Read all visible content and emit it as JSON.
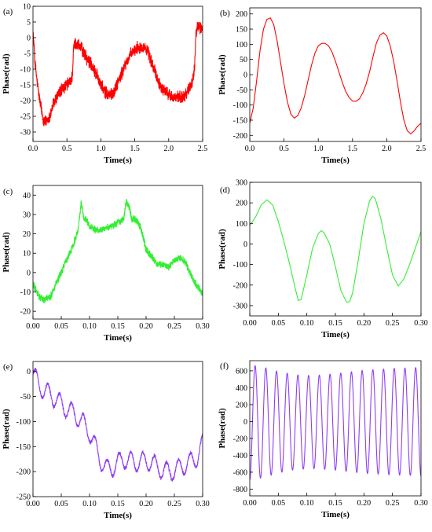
{
  "chart_data": [
    {
      "type": "line",
      "label": "(a)",
      "xlabel": "Time(s)",
      "ylabel": "Phase(rad)",
      "xlim": [
        0,
        2.5
      ],
      "ylim": [
        -33,
        10
      ],
      "xticks": [
        0.0,
        0.5,
        1.0,
        1.5,
        2.0,
        2.5
      ],
      "xtick_labels": [
        "0.0",
        "0.5",
        "1.0",
        "1.5",
        "2.0",
        "2.5"
      ],
      "yticks": [
        -30,
        -25,
        -20,
        -15,
        -10,
        -5,
        0,
        5,
        10
      ],
      "ytick_labels": [
        "-30",
        "-25",
        "-20",
        "-15",
        "-10",
        "-5",
        "0",
        "5",
        "10"
      ],
      "color": "#ff0000",
      "noise": 1.6,
      "x": [
        0.0,
        0.03,
        0.06,
        0.1,
        0.15,
        0.2,
        0.25,
        0.3,
        0.35,
        0.4,
        0.45,
        0.5,
        0.55,
        0.58,
        0.6,
        0.62,
        0.65,
        0.7,
        0.75,
        0.8,
        0.85,
        0.9,
        0.95,
        1.0,
        1.05,
        1.1,
        1.15,
        1.2,
        1.25,
        1.3,
        1.35,
        1.4,
        1.45,
        1.5,
        1.55,
        1.6,
        1.65,
        1.7,
        1.75,
        1.8,
        1.85,
        1.9,
        1.95,
        2.0,
        2.05,
        2.1,
        2.15,
        2.2,
        2.25,
        2.3,
        2.35,
        2.38,
        2.4,
        2.42,
        2.45,
        2.5
      ],
      "y": [
        2,
        -8,
        -14,
        -20,
        -26,
        -27,
        -25,
        -21,
        -19,
        -17,
        -16,
        -15,
        -14,
        -12,
        -3,
        -2,
        -2,
        -3,
        -5,
        -7,
        -8,
        -10,
        -12,
        -15,
        -17,
        -18,
        -18,
        -17,
        -14,
        -12,
        -9,
        -7,
        -5,
        -4,
        -3,
        -3,
        -3,
        -5,
        -8,
        -11,
        -14,
        -16,
        -17,
        -18,
        -19,
        -19,
        -19,
        -19,
        -18,
        -16,
        -14,
        -10,
        2,
        3,
        3,
        3
      ]
    },
    {
      "type": "line",
      "label": "(b)",
      "xlabel": "Time(s)",
      "ylabel": "Phase(rad)",
      "xlim": [
        0,
        2.5
      ],
      "ylim": [
        -220,
        220
      ],
      "xticks": [
        0.0,
        0.5,
        1.0,
        1.5,
        2.0,
        2.5
      ],
      "xtick_labels": [
        "0.0",
        "0.5",
        "1.0",
        "1.5",
        "2.0",
        "2.5"
      ],
      "yticks": [
        -200,
        -150,
        -100,
        -50,
        0,
        50,
        100,
        150,
        200
      ],
      "ytick_labels": [
        "-200",
        "-150",
        "-100",
        "-50",
        "0",
        "50",
        "100",
        "150",
        "200"
      ],
      "color": "#ff0000",
      "noise": 0,
      "x": [
        0.0,
        0.05,
        0.1,
        0.15,
        0.2,
        0.25,
        0.3,
        0.35,
        0.4,
        0.45,
        0.5,
        0.55,
        0.6,
        0.65,
        0.7,
        0.75,
        0.8,
        0.85,
        0.9,
        0.95,
        1.0,
        1.05,
        1.1,
        1.15,
        1.2,
        1.25,
        1.3,
        1.35,
        1.4,
        1.45,
        1.5,
        1.55,
        1.6,
        1.65,
        1.7,
        1.75,
        1.8,
        1.85,
        1.9,
        1.95,
        2.0,
        2.05,
        2.1,
        2.15,
        2.2,
        2.25,
        2.3,
        2.35,
        2.4,
        2.45,
        2.5
      ],
      "y": [
        -160,
        -110,
        -20,
        80,
        150,
        182,
        187,
        165,
        110,
        40,
        -30,
        -90,
        -130,
        -143,
        -135,
        -110,
        -70,
        -20,
        30,
        70,
        95,
        103,
        103,
        95,
        75,
        45,
        10,
        -25,
        -55,
        -75,
        -87,
        -88,
        -80,
        -60,
        -30,
        10,
        60,
        105,
        130,
        138,
        128,
        95,
        45,
        -20,
        -90,
        -150,
        -185,
        -195,
        -185,
        -170,
        -160
      ]
    },
    {
      "type": "line",
      "label": "(c)",
      "xlabel": "Time(s)",
      "ylabel": "Phase(rad)",
      "xlim": [
        0,
        0.3
      ],
      "ylim": [
        -24,
        45
      ],
      "xticks": [
        0.0,
        0.05,
        0.1,
        0.15,
        0.2,
        0.25,
        0.3
      ],
      "xtick_labels": [
        "0.00",
        "0.05",
        "0.10",
        "0.15",
        "0.20",
        "0.25",
        "0.30"
      ],
      "yticks": [
        -20,
        -10,
        0,
        10,
        20,
        30,
        40
      ],
      "ytick_labels": [
        "-20",
        "-10",
        "0",
        "10",
        "20",
        "30",
        "40"
      ],
      "color": "#33ee33",
      "noise": 1.5,
      "x": [
        0.0,
        0.01,
        0.02,
        0.03,
        0.035,
        0.04,
        0.05,
        0.06,
        0.07,
        0.08,
        0.085,
        0.09,
        0.095,
        0.1,
        0.11,
        0.12,
        0.13,
        0.14,
        0.15,
        0.16,
        0.165,
        0.17,
        0.175,
        0.18,
        0.185,
        0.19,
        0.195,
        0.2,
        0.21,
        0.22,
        0.23,
        0.24,
        0.25,
        0.26,
        0.27,
        0.28,
        0.29,
        0.3
      ],
      "y": [
        -6,
        -12,
        -14,
        -13,
        -10,
        -6,
        0,
        7,
        13,
        22,
        36,
        28,
        27,
        24,
        22,
        22,
        23,
        24,
        26,
        27,
        37,
        34,
        27,
        28,
        26,
        24,
        18,
        12,
        8,
        4,
        4,
        3,
        6,
        8,
        5,
        -2,
        -7,
        -11
      ]
    },
    {
      "type": "line",
      "label": "(d)",
      "xlabel": "Time(s)",
      "ylabel": "Phase(rad)",
      "xlim": [
        0,
        0.3
      ],
      "ylim": [
        -350,
        300
      ],
      "xticks": [
        0.0,
        0.05,
        0.1,
        0.15,
        0.2,
        0.25,
        0.3
      ],
      "xtick_labels": [
        "0.00",
        "0.05",
        "0.10",
        "0.15",
        "0.20",
        "0.25",
        "0.30"
      ],
      "yticks": [
        -300,
        -200,
        -100,
        0,
        100,
        200,
        300
      ],
      "ytick_labels": [
        "-300",
        "-200",
        "-100",
        "0",
        "100",
        "200",
        "300"
      ],
      "color": "#33ee33",
      "noise": 0,
      "x": [
        0.0,
        0.01,
        0.02,
        0.03,
        0.04,
        0.05,
        0.06,
        0.07,
        0.08,
        0.085,
        0.09,
        0.1,
        0.11,
        0.12,
        0.125,
        0.13,
        0.14,
        0.15,
        0.16,
        0.17,
        0.175,
        0.18,
        0.19,
        0.2,
        0.21,
        0.215,
        0.22,
        0.23,
        0.24,
        0.25,
        0.26,
        0.27,
        0.28,
        0.29,
        0.3
      ],
      "y": [
        90,
        130,
        190,
        215,
        190,
        110,
        10,
        -100,
        -220,
        -275,
        -270,
        -150,
        -20,
        50,
        65,
        55,
        0,
        -110,
        -230,
        -285,
        -280,
        -240,
        -80,
        100,
        210,
        232,
        220,
        120,
        -20,
        -150,
        -205,
        -170,
        -100,
        -20,
        60
      ]
    },
    {
      "type": "line",
      "label": "(e)",
      "xlabel": "Time(s)",
      "ylabel": "Phase(rad)",
      "xlim": [
        0,
        0.3
      ],
      "ylim": [
        -250,
        20
      ],
      "xticks": [
        0.0,
        0.05,
        0.1,
        0.15,
        0.2,
        0.25,
        0.3
      ],
      "xtick_labels": [
        "0.00",
        "0.05",
        "0.10",
        "0.15",
        "0.20",
        "0.25",
        "0.30"
      ],
      "yticks": [
        -250,
        -200,
        -150,
        -100,
        -50,
        0
      ],
      "ytick_labels": [
        "-250",
        "-200",
        "-150",
        "-100",
        "-50",
        "0"
      ],
      "color": "#8f3df5",
      "noise": 3,
      "x": [
        0.0,
        0.01,
        0.02,
        0.03,
        0.04,
        0.05,
        0.06,
        0.07,
        0.08,
        0.09,
        0.1,
        0.11,
        0.12,
        0.13,
        0.14,
        0.15,
        0.16,
        0.17,
        0.18,
        0.19,
        0.2,
        0.21,
        0.22,
        0.23,
        0.24,
        0.25,
        0.26,
        0.27,
        0.28,
        0.29,
        0.3
      ],
      "y": [
        -5,
        -25,
        -40,
        -45,
        -55,
        -65,
        -75,
        -82,
        -92,
        -105,
        -122,
        -150,
        -178,
        -195,
        -192,
        -182,
        -175,
        -178,
        -182,
        -180,
        -178,
        -182,
        -190,
        -198,
        -200,
        -198,
        -192,
        -186,
        -180,
        -172,
        -145
      ],
      "osc_amp": 18,
      "osc_period": 0.021
    },
    {
      "type": "line",
      "label": "(f)",
      "xlabel": "Time(s)",
      "ylabel": "Phase(rad)",
      "xlim": [
        0,
        0.3
      ],
      "ylim": [
        -880,
        720
      ],
      "xticks": [
        0.0,
        0.05,
        0.1,
        0.15,
        0.2,
        0.25,
        0.3
      ],
      "xtick_labels": [
        "0.00",
        "0.05",
        "0.10",
        "0.15",
        "0.20",
        "0.25",
        "0.30"
      ],
      "yticks": [
        -800,
        -600,
        -400,
        -200,
        0,
        200,
        400,
        600
      ],
      "ytick_labels": [
        "-800",
        "-600",
        "-400",
        "-200",
        "0",
        "200",
        "400",
        "600"
      ],
      "color": "#8f3df5",
      "noise": 0,
      "x": [
        0.0,
        0.3
      ],
      "y": [
        0,
        0
      ],
      "osc_amp": 620,
      "osc_period": 0.01875,
      "osc_phase": -0.25,
      "amp_x": [
        0.0,
        0.02,
        0.05,
        0.08,
        0.11,
        0.15,
        0.2,
        0.25,
        0.3
      ],
      "amp_y": [
        680,
        660,
        600,
        560,
        550,
        570,
        610,
        630,
        640
      ],
      "offset_x": [
        0.0,
        0.3
      ],
      "offset_y": [
        -10,
        0
      ]
    }
  ]
}
